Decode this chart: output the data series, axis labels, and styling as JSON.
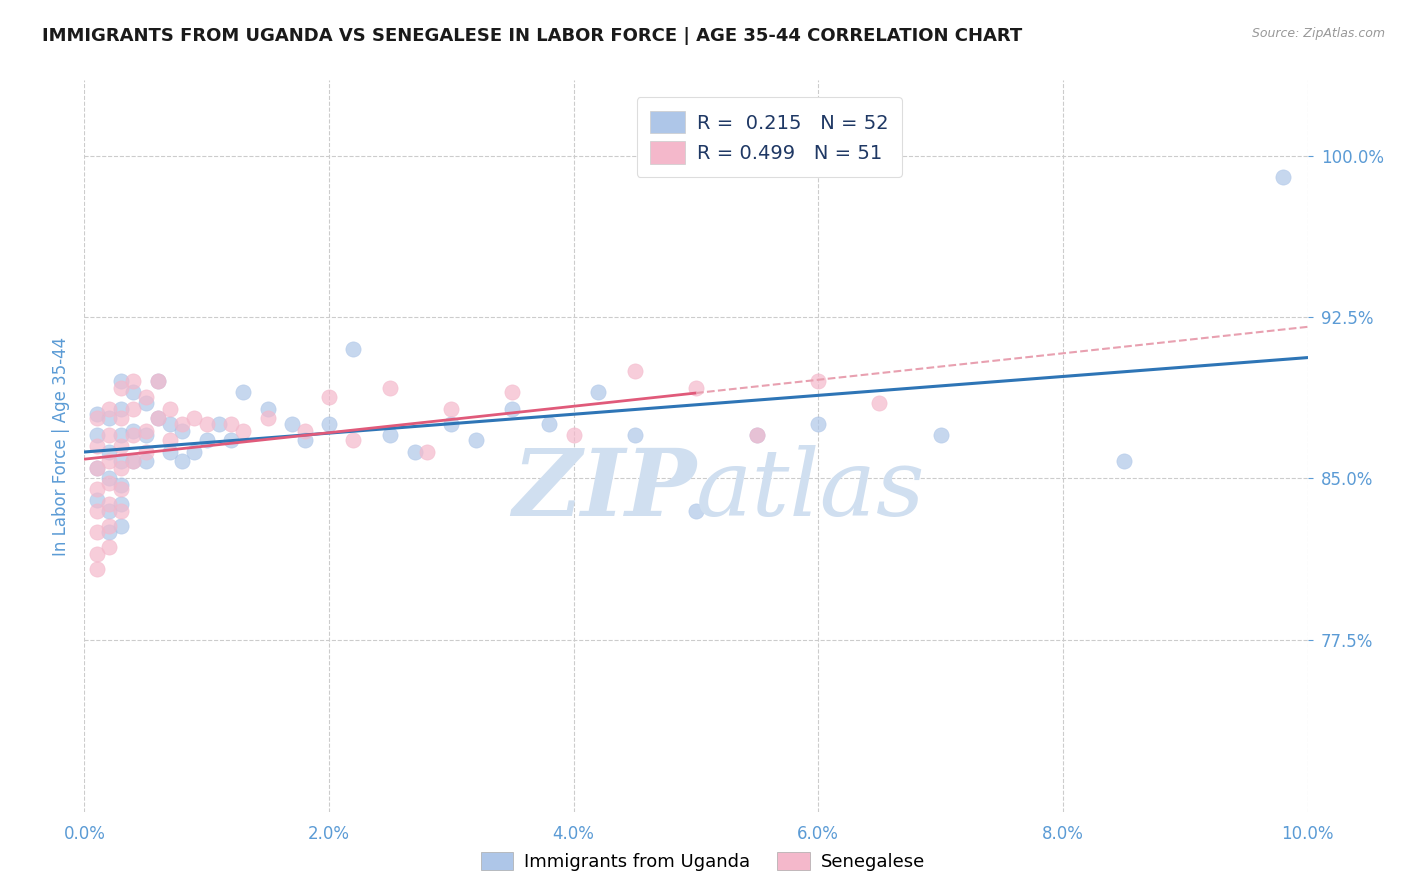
{
  "title": "IMMIGRANTS FROM UGANDA VS SENEGALESE IN LABOR FORCE | AGE 35-44 CORRELATION CHART",
  "source": "Source: ZipAtlas.com",
  "ylabel": "In Labor Force | Age 35-44",
  "xlim": [
    0.0,
    0.1
  ],
  "ylim": [
    0.695,
    1.035
  ],
  "xticks": [
    0.0,
    0.02,
    0.04,
    0.06,
    0.08,
    0.1
  ],
  "yticks": [
    0.775,
    0.85,
    0.925,
    1.0
  ],
  "ytick_labels": [
    "77.5%",
    "85.0%",
    "92.5%",
    "100.0%"
  ],
  "bg_color": "#ffffff",
  "grid_color": "#cccccc",
  "axis_label_color": "#5b9bd5",
  "tick_color": "#5b9bd5",
  "blue_color": "#aec6e8",
  "pink_color": "#f4b8cb",
  "blue_line_color": "#2e75b6",
  "pink_line_color": "#e05a7a",
  "pink_dashed_color": "#e8a0b0",
  "watermark_color": "#d0dff0",
  "legend_text_color": "#1f3864",
  "legend_r_color": "#2e75b6",
  "dot_size": 120,
  "dot_alpha": 0.7,
  "uganda_x": [
    0.001,
    0.001,
    0.001,
    0.001,
    0.002,
    0.002,
    0.002,
    0.002,
    0.002,
    0.003,
    0.003,
    0.003,
    0.003,
    0.003,
    0.003,
    0.003,
    0.004,
    0.004,
    0.004,
    0.005,
    0.005,
    0.005,
    0.006,
    0.006,
    0.007,
    0.007,
    0.008,
    0.008,
    0.009,
    0.01,
    0.011,
    0.012,
    0.013,
    0.015,
    0.017,
    0.018,
    0.02,
    0.022,
    0.025,
    0.027,
    0.03,
    0.032,
    0.035,
    0.038,
    0.042,
    0.045,
    0.05,
    0.055,
    0.06,
    0.07,
    0.085,
    0.098
  ],
  "uganda_y": [
    0.88,
    0.87,
    0.855,
    0.84,
    0.878,
    0.862,
    0.85,
    0.835,
    0.825,
    0.895,
    0.882,
    0.87,
    0.858,
    0.847,
    0.838,
    0.828,
    0.89,
    0.872,
    0.858,
    0.885,
    0.87,
    0.858,
    0.895,
    0.878,
    0.875,
    0.862,
    0.872,
    0.858,
    0.862,
    0.868,
    0.875,
    0.868,
    0.89,
    0.882,
    0.875,
    0.868,
    0.875,
    0.91,
    0.87,
    0.862,
    0.875,
    0.868,
    0.882,
    0.875,
    0.89,
    0.87,
    0.835,
    0.87,
    0.875,
    0.87,
    0.858,
    0.99
  ],
  "senegal_x": [
    0.001,
    0.001,
    0.001,
    0.001,
    0.001,
    0.001,
    0.001,
    0.001,
    0.002,
    0.002,
    0.002,
    0.002,
    0.002,
    0.002,
    0.002,
    0.003,
    0.003,
    0.003,
    0.003,
    0.003,
    0.003,
    0.004,
    0.004,
    0.004,
    0.004,
    0.005,
    0.005,
    0.005,
    0.006,
    0.006,
    0.007,
    0.007,
    0.008,
    0.009,
    0.01,
    0.012,
    0.013,
    0.015,
    0.018,
    0.02,
    0.022,
    0.025,
    0.028,
    0.03,
    0.035,
    0.04,
    0.045,
    0.05,
    0.055,
    0.06,
    0.065
  ],
  "senegal_y": [
    0.878,
    0.865,
    0.855,
    0.845,
    0.835,
    0.825,
    0.815,
    0.808,
    0.882,
    0.87,
    0.858,
    0.848,
    0.838,
    0.828,
    0.818,
    0.892,
    0.878,
    0.865,
    0.855,
    0.845,
    0.835,
    0.895,
    0.882,
    0.87,
    0.858,
    0.888,
    0.872,
    0.862,
    0.895,
    0.878,
    0.882,
    0.868,
    0.875,
    0.878,
    0.875,
    0.875,
    0.872,
    0.878,
    0.872,
    0.888,
    0.868,
    0.892,
    0.862,
    0.882,
    0.89,
    0.87,
    0.9,
    0.892,
    0.87,
    0.895,
    0.885
  ]
}
